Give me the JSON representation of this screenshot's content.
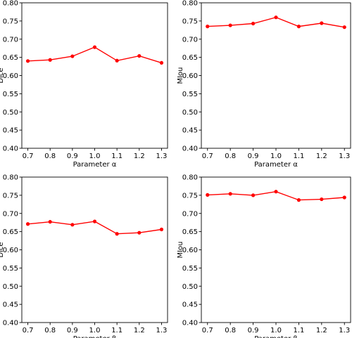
{
  "chart_data": [
    {
      "type": "line",
      "xlabel": "Parameter α",
      "ylabel": "Dice",
      "x": [
        0.7,
        0.8,
        0.9,
        1.0,
        1.1,
        1.2,
        1.3
      ],
      "xticks": [
        "0.7",
        "0.8",
        "0.9",
        "1.0",
        "1.1",
        "1.2",
        "1.3"
      ],
      "ylim": [
        0.4,
        0.8
      ],
      "yticks": [
        "0.40",
        "0.45",
        "0.50",
        "0.55",
        "0.60",
        "0.65",
        "0.70",
        "0.75",
        "0.80"
      ],
      "series": [
        {
          "values": [
            0.64,
            0.643,
            0.653,
            0.678,
            0.641,
            0.654,
            0.635
          ],
          "color": "#ff0000"
        }
      ],
      "grid": false
    },
    {
      "type": "line",
      "xlabel": "Parameter α",
      "ylabel": "MIou",
      "x": [
        0.7,
        0.8,
        0.9,
        1.0,
        1.1,
        1.2,
        1.3
      ],
      "xticks": [
        "0.7",
        "0.8",
        "0.9",
        "1.0",
        "1.1",
        "1.2",
        "1.3"
      ],
      "ylim": [
        0.4,
        0.8
      ],
      "yticks": [
        "0.40",
        "0.45",
        "0.50",
        "0.55",
        "0.60",
        "0.65",
        "0.70",
        "0.75",
        "0.80"
      ],
      "series": [
        {
          "values": [
            0.735,
            0.738,
            0.743,
            0.76,
            0.735,
            0.744,
            0.733
          ],
          "color": "#ff0000"
        }
      ],
      "grid": false
    },
    {
      "type": "line",
      "xlabel": "Parameter β",
      "ylabel": "Dice",
      "x": [
        0.7,
        0.8,
        0.9,
        1.0,
        1.1,
        1.2,
        1.3
      ],
      "xticks": [
        "0.7",
        "0.8",
        "0.9",
        "1.0",
        "1.1",
        "1.2",
        "1.3"
      ],
      "ylim": [
        0.4,
        0.8
      ],
      "yticks": [
        "0.40",
        "0.45",
        "0.50",
        "0.55",
        "0.60",
        "0.65",
        "0.70",
        "0.75",
        "0.80"
      ],
      "series": [
        {
          "values": [
            0.671,
            0.677,
            0.669,
            0.678,
            0.644,
            0.647,
            0.656
          ],
          "color": "#ff0000"
        }
      ],
      "grid": false
    },
    {
      "type": "line",
      "xlabel": "Parameter β",
      "ylabel": "MIou",
      "x": [
        0.7,
        0.8,
        0.9,
        1.0,
        1.1,
        1.2,
        1.3
      ],
      "xticks": [
        "0.7",
        "0.8",
        "0.9",
        "1.0",
        "1.1",
        "1.2",
        "1.3"
      ],
      "ylim": [
        0.4,
        0.8
      ],
      "yticks": [
        "0.40",
        "0.45",
        "0.50",
        "0.55",
        "0.60",
        "0.65",
        "0.70",
        "0.75",
        "0.80"
      ],
      "series": [
        {
          "values": [
            0.751,
            0.754,
            0.75,
            0.76,
            0.737,
            0.739,
            0.744
          ],
          "color": "#ff0000"
        }
      ],
      "grid": false
    }
  ]
}
